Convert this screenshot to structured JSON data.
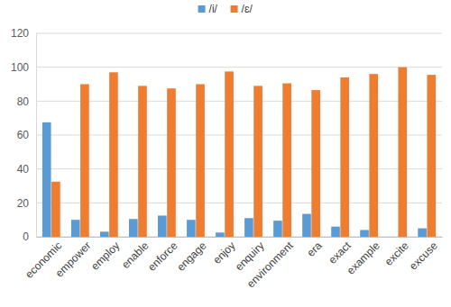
{
  "chart_data": {
    "type": "bar",
    "categories": [
      "economic",
      "empower",
      "employ",
      "enable",
      "enforce",
      "engage",
      "enjoy",
      "enquiry",
      "environment",
      "era",
      "exact",
      "example",
      "excite",
      "excuse"
    ],
    "series": [
      {
        "name": "/i/",
        "color": "#5b9bd5",
        "values": [
          67.5,
          10,
          3,
          10.5,
          12.5,
          10,
          2.5,
          11,
          9.5,
          13.5,
          6,
          4,
          0,
          5
        ]
      },
      {
        "name": "/ɛ/",
        "color": "#ed7d31",
        "values": [
          32.5,
          90,
          97,
          89,
          87.5,
          90,
          97.5,
          89,
          90.5,
          86.5,
          94,
          96,
          100,
          95.5
        ]
      }
    ],
    "ylim": [
      0,
      120
    ],
    "yticks": [
      0,
      20,
      40,
      60,
      80,
      100,
      120
    ],
    "grid": true,
    "legend": "top"
  }
}
